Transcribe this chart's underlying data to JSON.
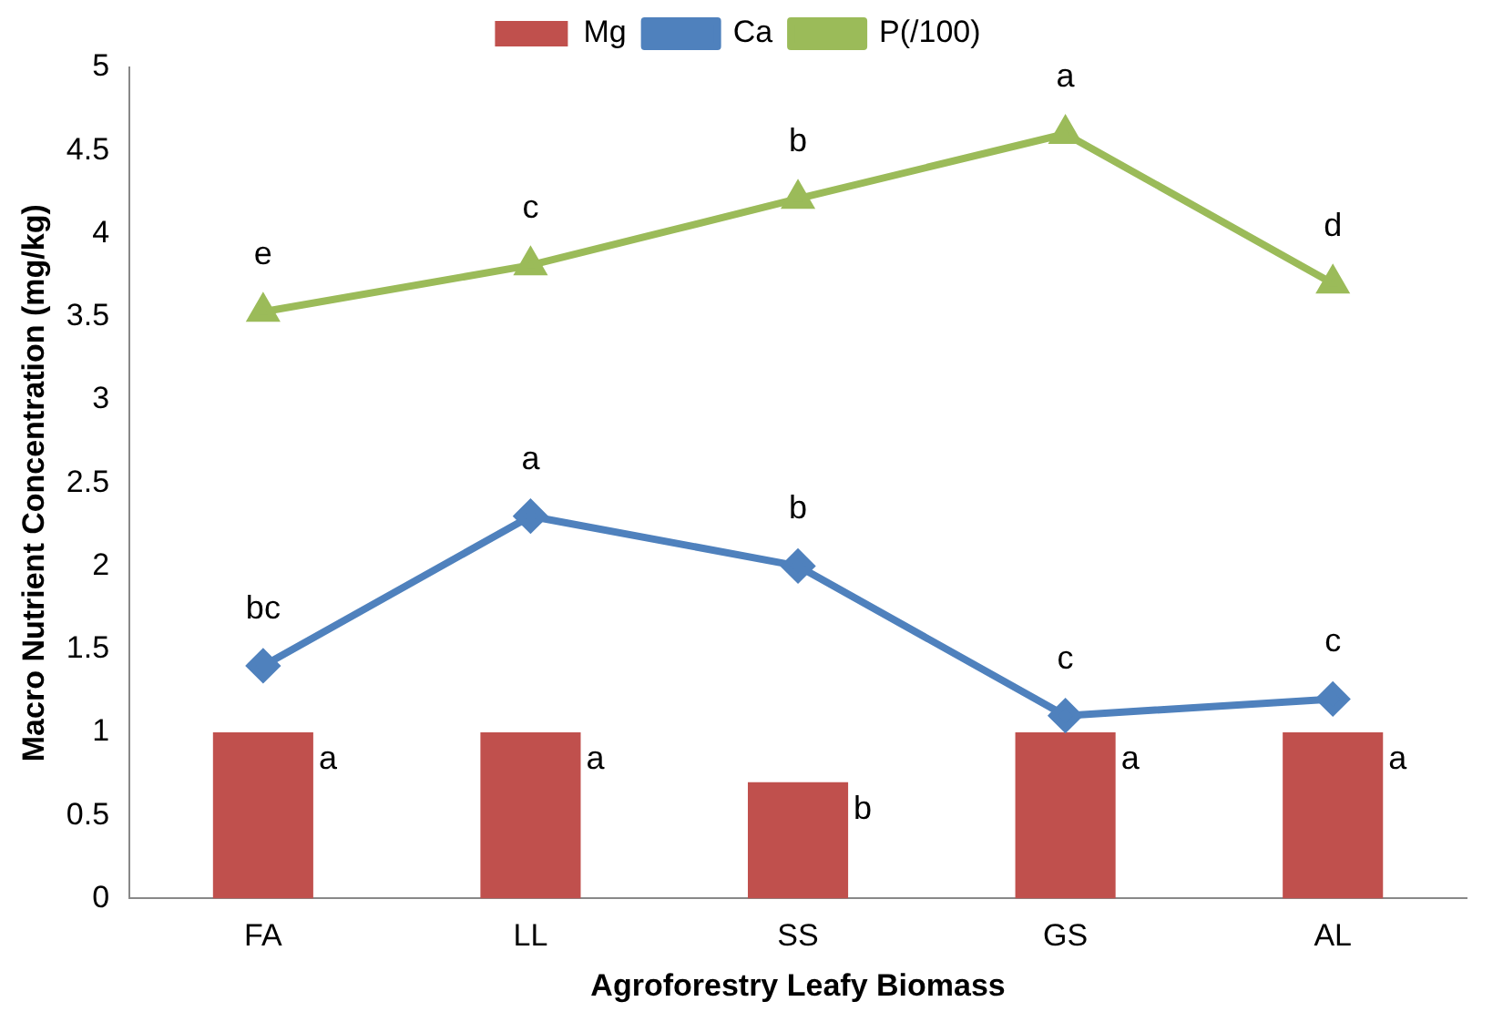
{
  "chart_data": {
    "type": "bar",
    "xlabel": "Agroforestry Leafy Biomass",
    "ylabel": "Macro Nutrient Concentration (mg/kg)",
    "categories": [
      "FA",
      "LL",
      "SS",
      "GS",
      "AL"
    ],
    "series": [
      {
        "name": "Mg",
        "color": "#c0504d",
        "values": [
          1,
          1,
          0.7,
          1,
          1
        ],
        "value_labels": [
          "a",
          "a",
          "b",
          "a",
          "a"
        ]
      },
      {
        "name": "Ca",
        "type": "line",
        "color": "#4f81bd",
        "marker": "diamond",
        "values": [
          1.4,
          2.3,
          2.0,
          1.1,
          1.2
        ],
        "value_labels": [
          "bc",
          "a",
          "b",
          "c",
          "c"
        ]
      },
      {
        "name": "P(/100)",
        "type": "line",
        "color": "#9bbb59",
        "marker": "triangle",
        "values": [
          3.53,
          3.81,
          4.21,
          4.6,
          3.7
        ],
        "value_labels": [
          "e",
          "c",
          "b",
          "a",
          "d"
        ]
      }
    ],
    "ylim": [
      0,
      5
    ],
    "yticks": [
      0,
      0.5,
      1,
      1.5,
      2,
      2.5,
      3,
      3.5,
      4,
      4.5,
      5
    ],
    "grid": false,
    "legend": "top"
  }
}
